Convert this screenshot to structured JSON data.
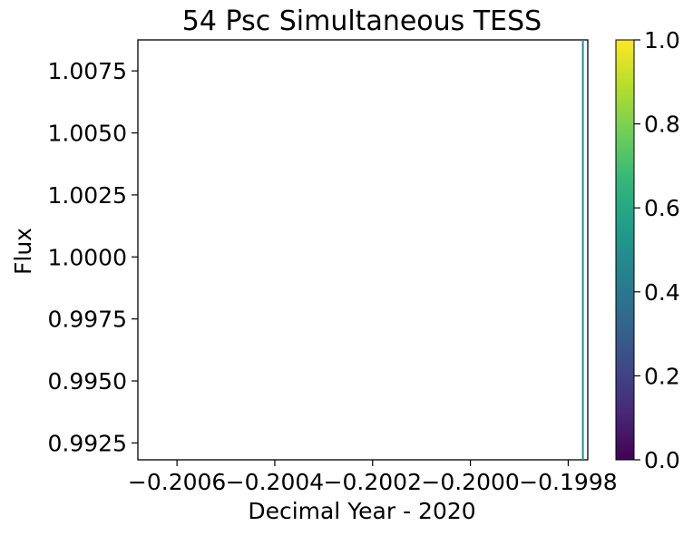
{
  "chart_data": {
    "type": "scatter",
    "title": "54 Psc Simultaneous TESS",
    "xlabel": "Decimal Year - 2020",
    "ylabel": "Flux",
    "xlim": [
      -0.20068,
      -0.19976
    ],
    "ylim": [
      0.99182,
      1.00875
    ],
    "xticks": [
      -0.2006,
      -0.2004,
      -0.2002,
      -0.2,
      -0.1998
    ],
    "xtick_labels": [
      "−0.2006",
      "−0.2004",
      "−0.2002",
      "−0.2000",
      "−0.1998"
    ],
    "yticks": [
      0.9925,
      0.995,
      0.9975,
      1.0,
      1.0025,
      1.005,
      1.0075
    ],
    "ytick_labels": [
      "0.9925",
      "0.9950",
      "0.9975",
      "1.0000",
      "1.0025",
      "1.0050",
      "1.0075"
    ],
    "series": [
      {
        "x": [
          -0.19977,
          -0.19977
        ],
        "y": [
          0.99182,
          1.00875
        ],
        "color": "#21908d"
      }
    ],
    "colorbar": {
      "label": "",
      "range": [
        0.0,
        1.0
      ],
      "ticks": [
        0.0,
        0.2,
        0.4,
        0.6,
        0.8,
        1.0
      ],
      "tick_labels": [
        "0.0",
        "0.2",
        "0.4",
        "0.6",
        "0.8",
        "1.0"
      ],
      "colormap": [
        "#440154",
        "#482878",
        "#3e4989",
        "#31688e",
        "#26828e",
        "#1f9e89",
        "#35b779",
        "#6ece58",
        "#b5de2b",
        "#fde725"
      ]
    },
    "grid": false,
    "legend": "none"
  }
}
